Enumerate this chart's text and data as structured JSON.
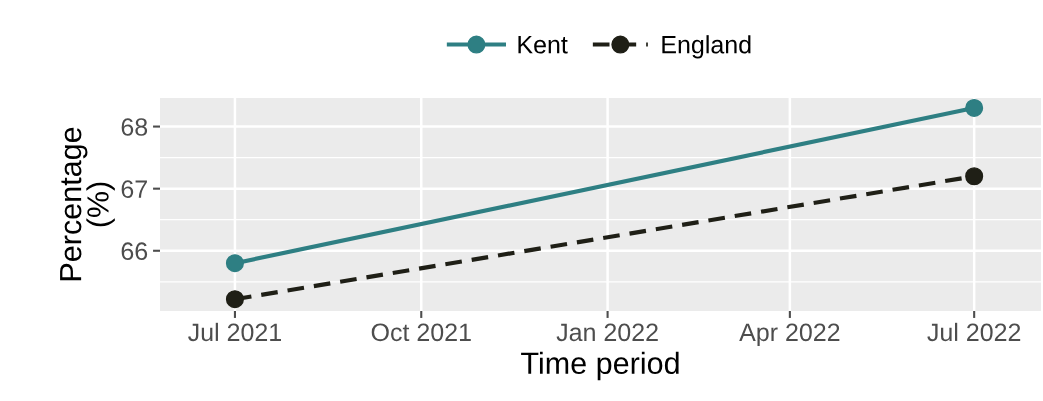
{
  "chart_data": {
    "type": "line",
    "xlabel": "Time period",
    "ylabel": "Percentage\n(%)",
    "x": [
      "2021-07-01",
      "2022-07-01"
    ],
    "series": [
      {
        "name": "Kent",
        "color": "#2e7f83",
        "values": [
          65.8,
          68.3
        ],
        "line_style": "solid"
      },
      {
        "name": "England",
        "color": "#1f1f16",
        "values": [
          65.22,
          67.2
        ],
        "line_style": "dashed"
      }
    ],
    "xlim": [
      "2021-05-25",
      "2022-08-03"
    ],
    "xticks": [
      {
        "value": "2021-07-01",
        "label": "Jul 2021"
      },
      {
        "value": "2021-10-01",
        "label": "Oct 2021"
      },
      {
        "value": "2022-01-01",
        "label": "Jan 2022"
      },
      {
        "value": "2022-04-01",
        "label": "Apr 2022"
      },
      {
        "value": "2022-07-01",
        "label": "Jul 2022"
      }
    ],
    "ylim": [
      65.03,
      68.46
    ],
    "yticks": [
      66,
      67,
      68
    ],
    "grid": true,
    "legend": "top",
    "marker": "circle"
  }
}
